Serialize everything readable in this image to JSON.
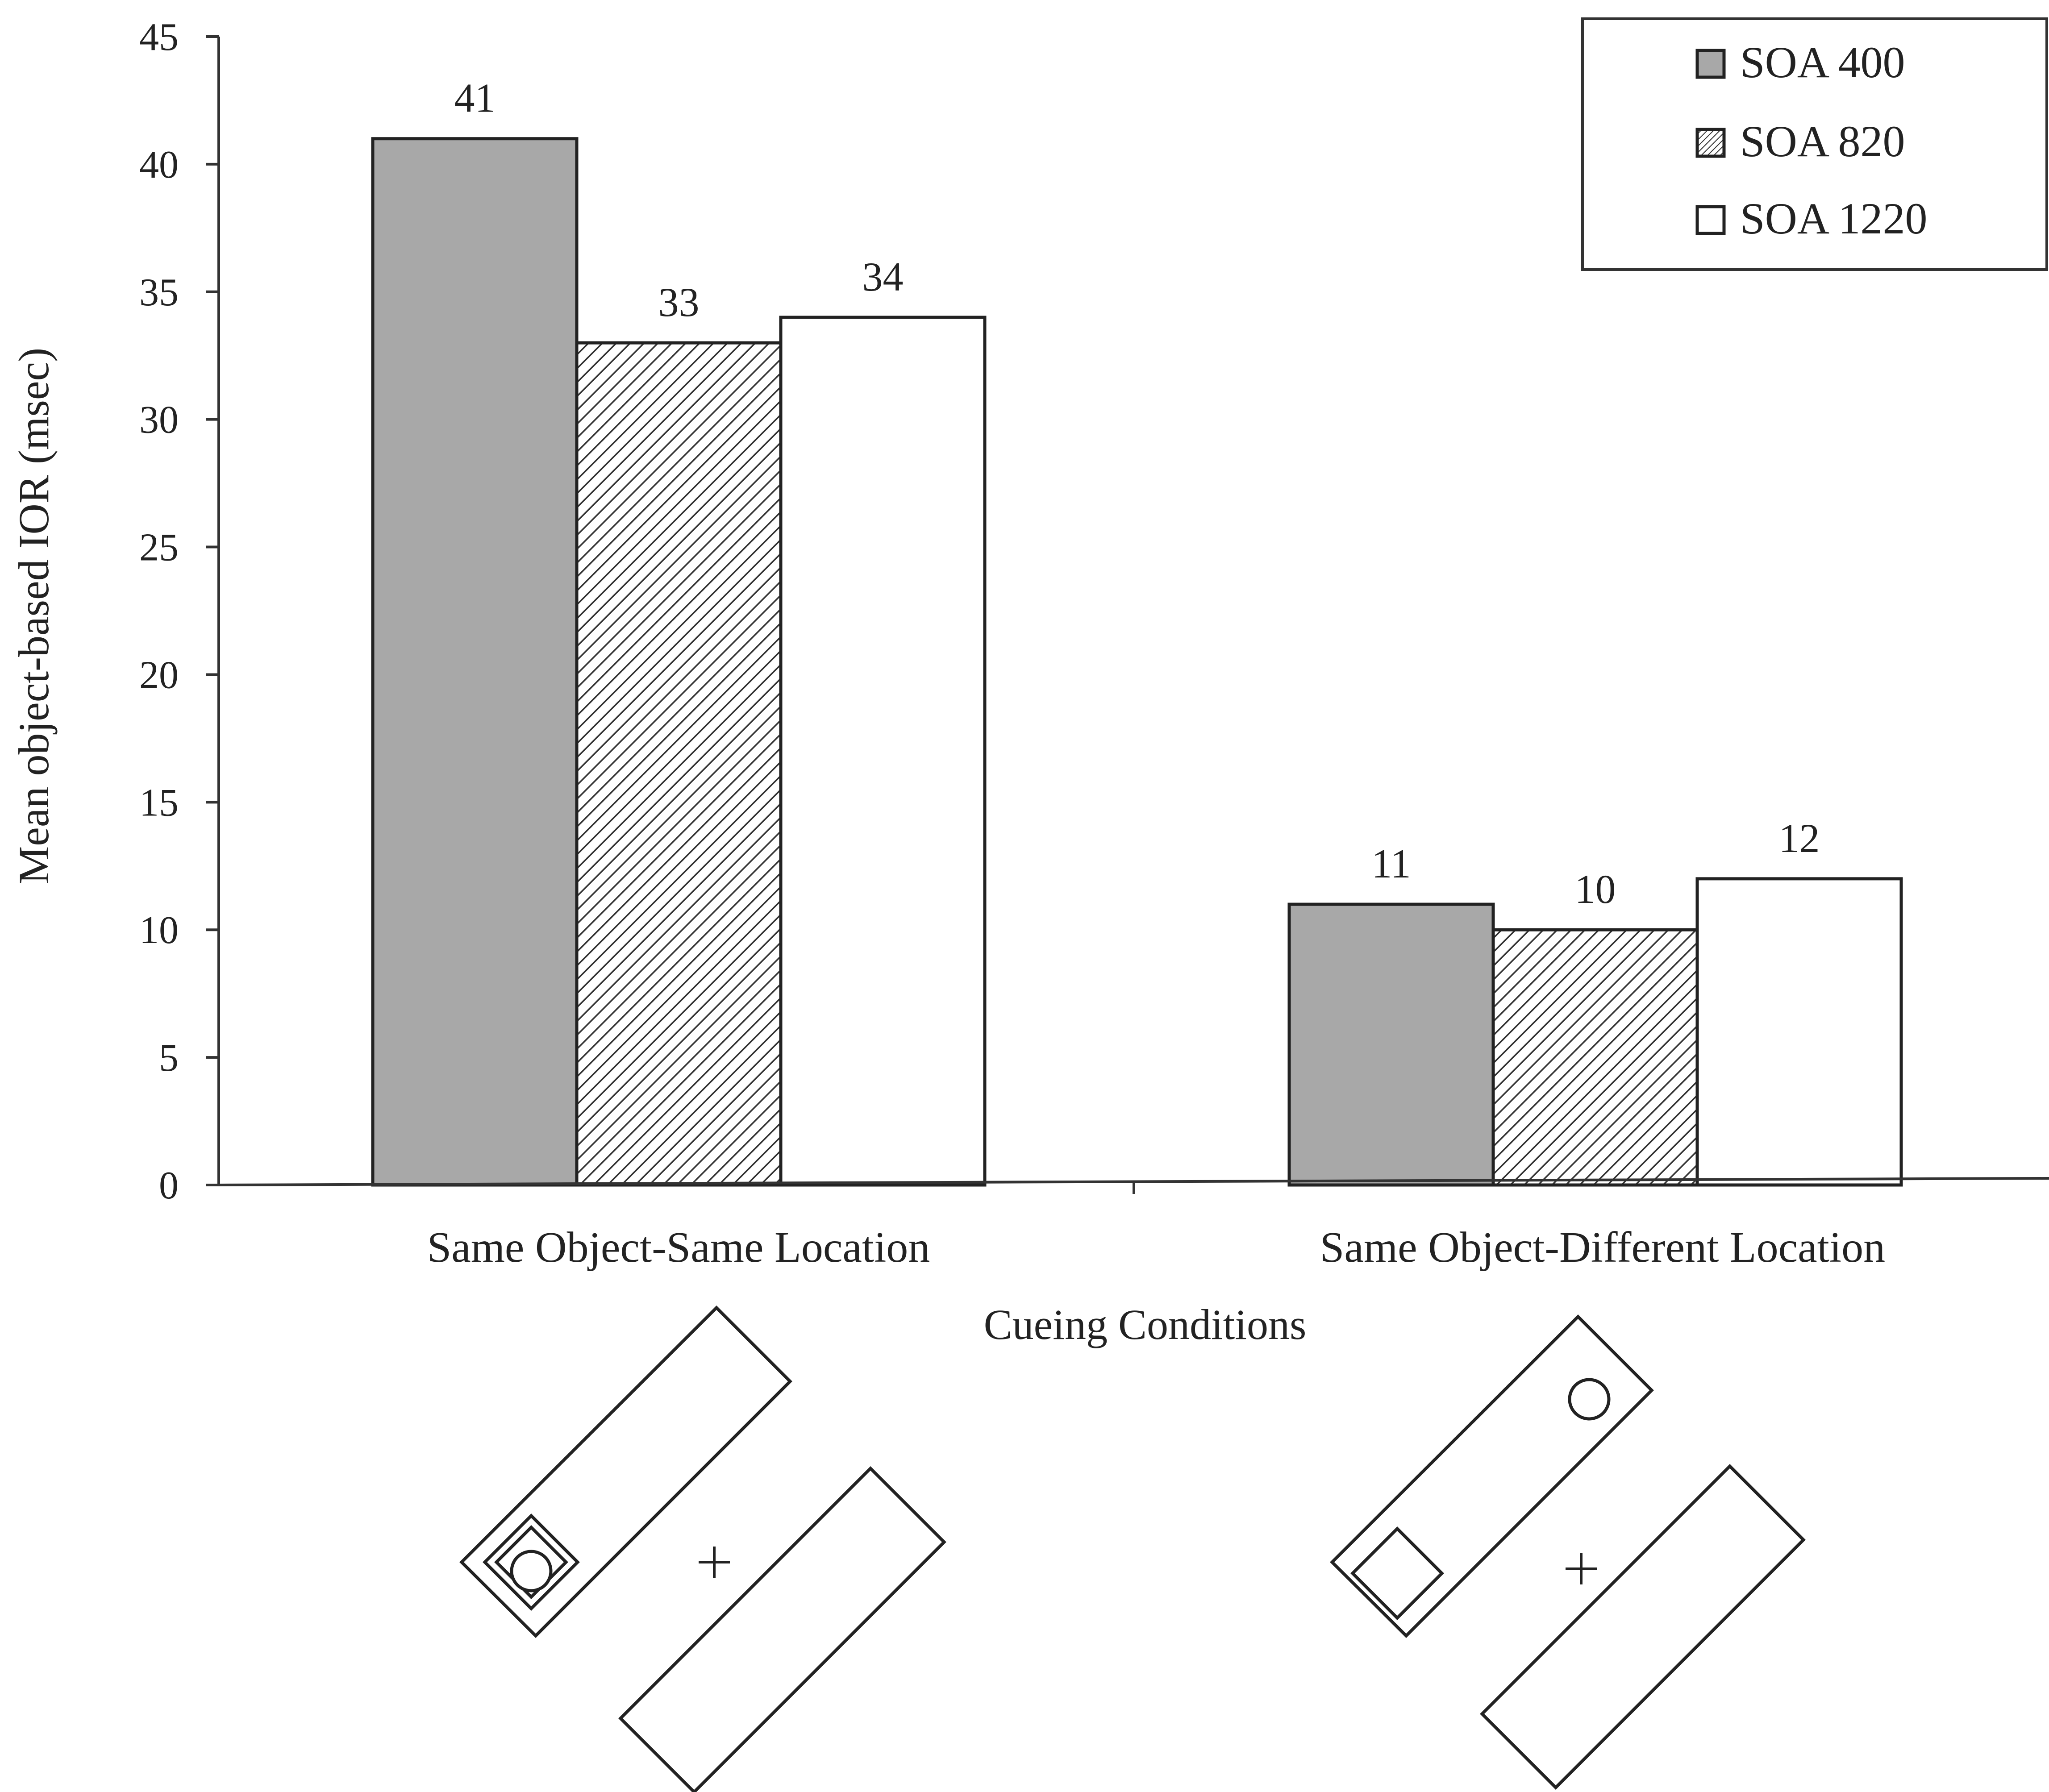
{
  "chart_data": {
    "type": "bar",
    "title": "",
    "xlabel": "Cueing Conditions",
    "ylabel": "Mean object-based IOR (msec)",
    "ylim": [
      0,
      45
    ],
    "yticks": [
      0,
      5,
      10,
      15,
      20,
      25,
      30,
      35,
      40,
      45
    ],
    "categories": [
      "Same Object-Same Location",
      "Same Object-Different Location"
    ],
    "series": [
      {
        "name": "SOA 400",
        "values": [
          41,
          11
        ],
        "fill": "gray",
        "color": "#a8a8a8"
      },
      {
        "name": "SOA 820",
        "values": [
          33,
          10
        ],
        "fill": "hatch",
        "color": "#333333"
      },
      {
        "name": "SOA 1220",
        "values": [
          34,
          12
        ],
        "fill": "white",
        "color": "#ffffff"
      }
    ],
    "data_labels": [
      [
        "41",
        "11"
      ],
      [
        "33",
        "10"
      ],
      [
        "34",
        "12"
      ]
    ],
    "legend": {
      "position": "top-right"
    },
    "grid": false
  },
  "diagrams": [
    {
      "condition": "Same Object-Same Location",
      "fixation": "+",
      "target_in_cued_square": true
    },
    {
      "condition": "Same Object-Different Location",
      "fixation": "+",
      "target_in_cued_square": false
    }
  ]
}
